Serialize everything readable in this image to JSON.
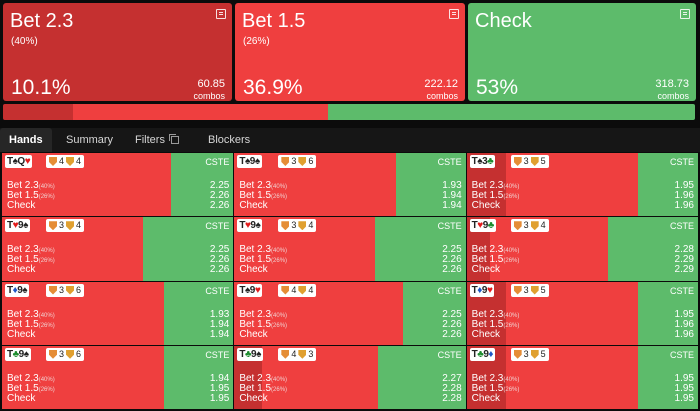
{
  "actions": [
    {
      "title": "Bet 2.3",
      "freq": "(40%)",
      "pct": "10.1%",
      "combos": "60.85",
      "combos_label": "combos",
      "color": "#c53030"
    },
    {
      "title": "Bet 1.5",
      "freq": "(26%)",
      "pct": "36.9%",
      "combos": "222.12",
      "combos_label": "combos",
      "color": "#ef3f3f"
    },
    {
      "title": "Check",
      "freq": "",
      "pct": "53%",
      "combos": "318.73",
      "combos_label": "combos",
      "color": "#5dbb6b"
    }
  ],
  "strategy_bar": [
    {
      "name": "Bet 2.3",
      "fraction": 0.101,
      "color": "#c53030"
    },
    {
      "name": "Bet 1.5",
      "fraction": 0.369,
      "color": "#ef3f3f"
    },
    {
      "name": "Check",
      "fraction": 0.53,
      "color": "#5dbb6b"
    }
  ],
  "tabs": [
    {
      "label": "Hands",
      "active": true
    },
    {
      "label": "Summary",
      "active": false
    },
    {
      "label": "Filters",
      "active": false
    },
    {
      "label": "Blockers",
      "active": false
    }
  ],
  "hands": [
    {
      "cards": [
        [
          "T",
          "♠",
          ""
        ],
        [
          "Q",
          "♥",
          "r"
        ]
      ],
      "badge1": "4",
      "badge2": "4",
      "split": [
        0.0,
        0.73
      ],
      "evs": [
        "2.25",
        "2.26",
        "2.26"
      ]
    },
    {
      "cards": [
        [
          "T",
          "♠",
          ""
        ],
        [
          "9",
          "♠",
          ""
        ]
      ],
      "badge1": "3",
      "badge2": "6",
      "split": [
        0.0,
        0.7
      ],
      "evs": [
        "1.93",
        "1.94",
        "1.94"
      ]
    },
    {
      "cards": [
        [
          "T",
          "♠",
          ""
        ],
        [
          "3",
          "♣",
          "g"
        ]
      ],
      "badge1": "3",
      "badge2": "5",
      "split": [
        0.17,
        0.74
      ],
      "evs": [
        "1.95",
        "1.96",
        "1.96"
      ]
    },
    {
      "cards": [
        [
          "T",
          "♥",
          "r"
        ],
        [
          "9",
          "♠",
          ""
        ]
      ],
      "badge1": "3",
      "badge2": "4",
      "split": [
        0.0,
        0.61
      ],
      "evs": [
        "2.25",
        "2.26",
        "2.26"
      ]
    },
    {
      "cards": [
        [
          "T",
          "♥",
          "r"
        ],
        [
          "9",
          "♠",
          ""
        ]
      ],
      "badge1": "3",
      "badge2": "4",
      "split": [
        0.0,
        0.61
      ],
      "evs": [
        "2.25",
        "2.26",
        "2.26"
      ]
    },
    {
      "cards": [
        [
          "T",
          "♥",
          "r"
        ],
        [
          "9",
          "♣",
          "g"
        ]
      ],
      "badge1": "3",
      "badge2": "4",
      "split": [
        0.1,
        0.61
      ],
      "evs": [
        "2.28",
        "2.29",
        "2.29"
      ]
    },
    {
      "cards": [
        [
          "T",
          "♦",
          "b"
        ],
        [
          "9",
          "♠",
          ""
        ]
      ],
      "badge1": "3",
      "badge2": "6",
      "split": [
        0.0,
        0.7
      ],
      "evs": [
        "1.93",
        "1.94",
        "1.94"
      ]
    },
    {
      "cards": [
        [
          "T",
          "♠",
          ""
        ],
        [
          "9",
          "♥",
          "r"
        ]
      ],
      "badge1": "4",
      "badge2": "4",
      "split": [
        0.0,
        0.73
      ],
      "evs": [
        "2.25",
        "2.26",
        "2.26"
      ]
    },
    {
      "cards": [
        [
          "T",
          "♦",
          "b"
        ],
        [
          "9",
          "♥",
          "r"
        ]
      ],
      "badge1": "3",
      "badge2": "5",
      "split": [
        0.17,
        0.74
      ],
      "evs": [
        "1.95",
        "1.96",
        "1.96"
      ]
    },
    {
      "cards": [
        [
          "T",
          "♣",
          "g"
        ],
        [
          "9",
          "♠",
          ""
        ]
      ],
      "badge1": "3",
      "badge2": "6",
      "split": [
        0.0,
        0.7
      ],
      "evs": [
        "1.94",
        "1.95",
        "1.95"
      ]
    },
    {
      "cards": [
        [
          "T",
          "♣",
          "g"
        ],
        [
          "9",
          "♠",
          ""
        ]
      ],
      "badge1": "4",
      "badge2": "3",
      "split": [
        0.12,
        0.62
      ],
      "evs": [
        "2.27",
        "2.28",
        "2.28"
      ]
    },
    {
      "cards": [
        [
          "T",
          "♣",
          "g"
        ],
        [
          "9",
          "♦",
          "b"
        ]
      ],
      "badge1": "3",
      "badge2": "5",
      "split": [
        0.17,
        0.74
      ],
      "evs": [
        "1.95",
        "1.95",
        "1.95"
      ]
    }
  ],
  "labels": {
    "cste": "CSTE",
    "bet23": "Bet 2.3",
    "bet23_freq": "(40%)",
    "bet15": "Bet 1.5",
    "bet15_freq": "(26%)",
    "check": "Check"
  }
}
